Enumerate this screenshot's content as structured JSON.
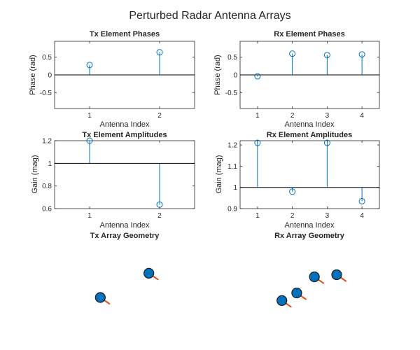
{
  "figure": {
    "title": "Perturbed Radar Antenna Arrays",
    "colors": {
      "stem": "#0072bd",
      "element": "#0072bd",
      "normal": "#d95319",
      "axes": "#262626"
    }
  },
  "chart_data": [
    {
      "id": "tx_phase",
      "type": "stem",
      "title": "Tx Element Phases",
      "xlabel": "Antenna Index",
      "ylabel": "Phase (rad)",
      "xlim": [
        0.5,
        2.5
      ],
      "ylim": [
        -0.95,
        0.95
      ],
      "xticks": [
        1,
        2
      ],
      "yticks": [
        -0.5,
        0,
        0.5
      ],
      "ytick_labels": [
        "-0.5",
        "0",
        "0.5"
      ],
      "baseline": 0,
      "x": [
        1,
        2
      ],
      "values": [
        0.28,
        0.64
      ]
    },
    {
      "id": "rx_phase",
      "type": "stem",
      "title": "Rx Element Phases",
      "xlabel": "Antenna Index",
      "ylabel": "Phase (rad)",
      "xlim": [
        0.5,
        4.5
      ],
      "ylim": [
        -0.95,
        0.95
      ],
      "xticks": [
        1,
        2,
        3,
        4
      ],
      "yticks": [
        -0.5,
        0,
        0.5
      ],
      "ytick_labels": [
        "-0.5",
        "0",
        "0.5"
      ],
      "baseline": 0,
      "x": [
        1,
        2,
        3,
        4
      ],
      "values": [
        -0.04,
        0.6,
        0.56,
        0.58
      ]
    },
    {
      "id": "tx_amp",
      "type": "stem",
      "title": "Tx Element Amplitudes",
      "xlabel": "Antenna Index",
      "ylabel": "Gain (mag)",
      "xlim": [
        0.5,
        2.5
      ],
      "ylim": [
        0.6,
        1.2
      ],
      "xticks": [
        1,
        2
      ],
      "yticks": [
        0.6,
        0.8,
        1,
        1.2
      ],
      "ytick_labels": [
        "0.6",
        "0.8",
        "1",
        "1.2"
      ],
      "baseline": 1,
      "x": [
        1,
        2
      ],
      "values": [
        1.2,
        0.635
      ]
    },
    {
      "id": "rx_amp",
      "type": "stem",
      "title": "Rx Element Amplitudes",
      "xlabel": "Antenna Index",
      "ylabel": "Gain (mag)",
      "xlim": [
        0.5,
        4.5
      ],
      "ylim": [
        0.9,
        1.22
      ],
      "xticks": [
        1,
        2,
        3,
        4
      ],
      "yticks": [
        0.9,
        1,
        1.1,
        1.2
      ],
      "ytick_labels": [
        "0.9",
        "1",
        "1.1",
        "1.2"
      ],
      "baseline": 1,
      "x": [
        1,
        2,
        3,
        4
      ],
      "values": [
        1.21,
        0.98,
        1.21,
        0.935
      ]
    },
    {
      "id": "tx_geom",
      "type": "scatter",
      "title": "Tx Array Geometry",
      "xlim": [
        -1.5,
        1.5
      ],
      "ylim": [
        -1.5,
        1.5
      ],
      "x": [
        -0.52,
        0.52
      ],
      "y": [
        -0.3,
        0.5
      ],
      "marker": "filled-circle-with-normal"
    },
    {
      "id": "rx_geom",
      "type": "scatter",
      "title": "Rx Array Geometry",
      "xlim": [
        -1.5,
        1.5
      ],
      "ylim": [
        -1.5,
        1.5
      ],
      "x": [
        -0.6,
        -0.28,
        0.1,
        0.58
      ],
      "y": [
        -0.4,
        -0.15,
        0.38,
        0.45
      ],
      "marker": "filled-circle-with-normal"
    }
  ]
}
